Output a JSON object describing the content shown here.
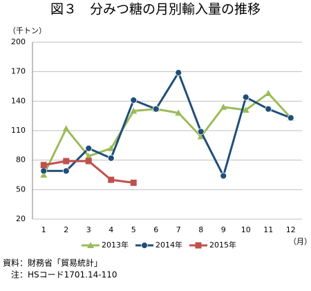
{
  "chart_data": {
    "type": "line",
    "title": "図３　分みつ糖の月別輸入量の推移",
    "y_unit": "（千トン）",
    "x_unit": "（月）",
    "categories": [
      "1",
      "2",
      "3",
      "4",
      "5",
      "6",
      "7",
      "8",
      "9",
      "10",
      "11",
      "12"
    ],
    "series": [
      {
        "name": "2013年",
        "color": "#9bbb59",
        "marker": "triangle",
        "values": [
          65,
          112,
          84,
          92,
          130,
          132,
          128,
          104,
          134,
          131,
          148,
          123
        ]
      },
      {
        "name": "2014年",
        "color": "#1f4e79",
        "marker": "circle",
        "values": [
          69,
          69,
          92,
          82,
          141,
          132,
          169,
          109,
          64,
          144,
          132,
          123
        ]
      },
      {
        "name": "2015年",
        "color": "#c0504d",
        "marker": "square",
        "values": [
          75,
          79,
          79,
          60,
          57,
          null,
          null,
          null,
          null,
          null,
          null,
          null
        ]
      }
    ],
    "ylim": [
      20,
      200
    ],
    "yticks": [
      20,
      50,
      80,
      110,
      140,
      170,
      200
    ],
    "grid": true,
    "legend": "bottom",
    "notes": [
      "資料：財務省「貿易統計」",
      "注：HSコード1701.14-110"
    ]
  }
}
